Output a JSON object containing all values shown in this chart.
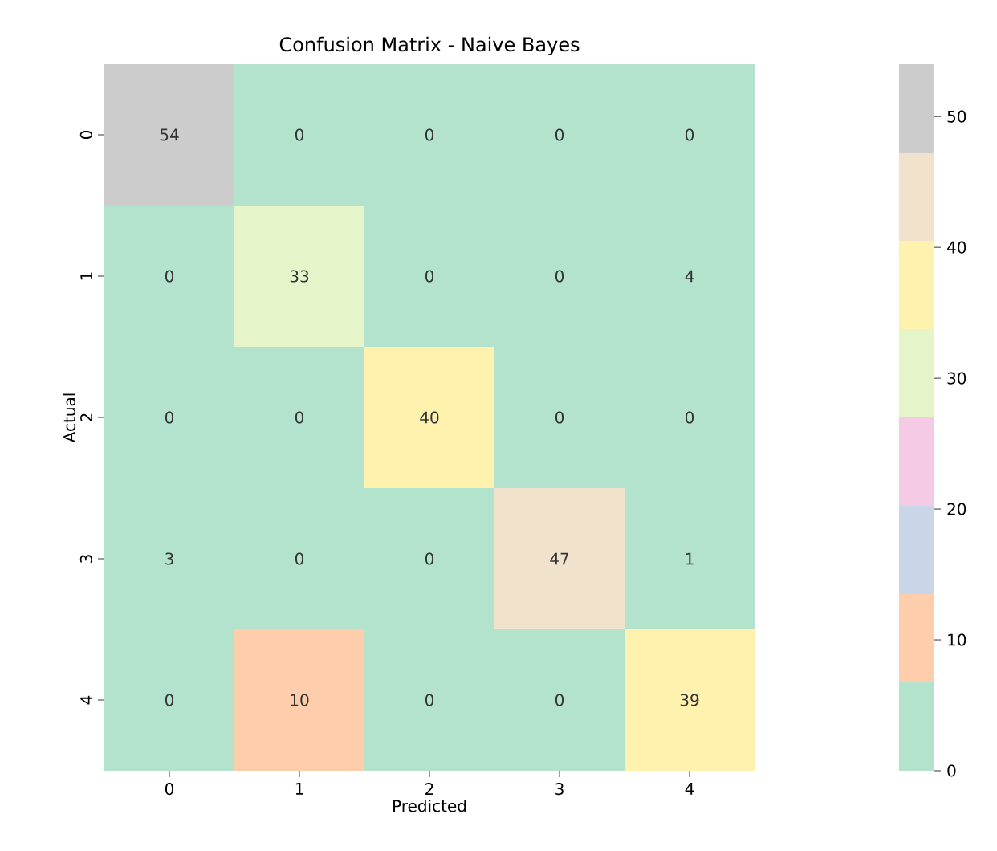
{
  "chart_data": {
    "type": "heatmap",
    "title": "Confusion Matrix - Naive Bayes",
    "xlabel": "Predicted",
    "ylabel": "Actual",
    "categories": [
      "0",
      "1",
      "2",
      "3",
      "4"
    ],
    "y_categories": [
      "0",
      "1",
      "2",
      "3",
      "4"
    ],
    "cells": [
      [
        54,
        0,
        0,
        0,
        0
      ],
      [
        0,
        33,
        0,
        0,
        4
      ],
      [
        0,
        0,
        40,
        0,
        0
      ],
      [
        3,
        0,
        0,
        47,
        1
      ],
      [
        0,
        10,
        0,
        0,
        39
      ]
    ],
    "data_labels": true,
    "clim": [
      0,
      54
    ],
    "cticks": [
      0,
      10,
      20,
      30,
      40,
      50
    ],
    "colors": [
      "#b3e2cd",
      "#fdcdac",
      "#cbd5e8",
      "#f4cae4",
      "#e6f5c9",
      "#fff2ae",
      "#f1e2cc",
      "#cccccc"
    ]
  }
}
